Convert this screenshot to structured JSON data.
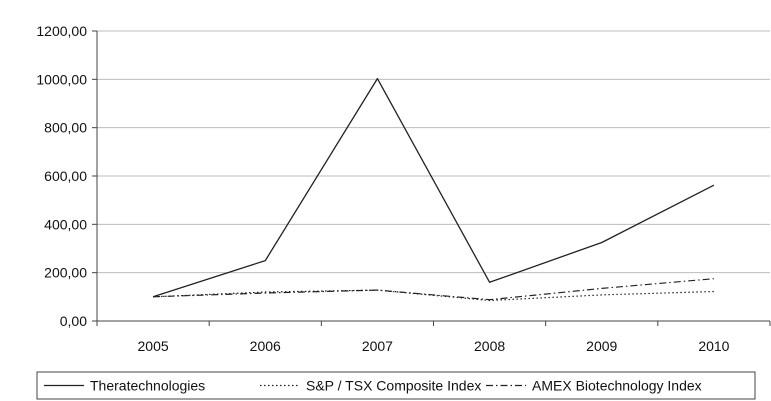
{
  "chart_data": {
    "type": "line",
    "x": [
      "2005",
      "2006",
      "2007",
      "2008",
      "2009",
      "2010"
    ],
    "series": [
      {
        "name": "Theratechnologies",
        "values": [
          100,
          250,
          1003,
          160,
          325,
          562
        ],
        "style": "solid",
        "color": "#222222"
      },
      {
        "name": "S&P / TSX Composite Index",
        "values": [
          100,
          120,
          128,
          85,
          108,
          122
        ],
        "style": "dotted",
        "color": "#222222"
      },
      {
        "name": "AMEX Biotechnology Index",
        "values": [
          100,
          116,
          128,
          88,
          135,
          175
        ],
        "style": "dashdot",
        "color": "#222222"
      }
    ],
    "y_ticks": [
      "0,00",
      "200,00",
      "400,00",
      "600,00",
      "800,00",
      "1000,00",
      "1200,00"
    ],
    "ylim": [
      0,
      1200
    ],
    "grid": true,
    "legend_position": "bottom"
  }
}
